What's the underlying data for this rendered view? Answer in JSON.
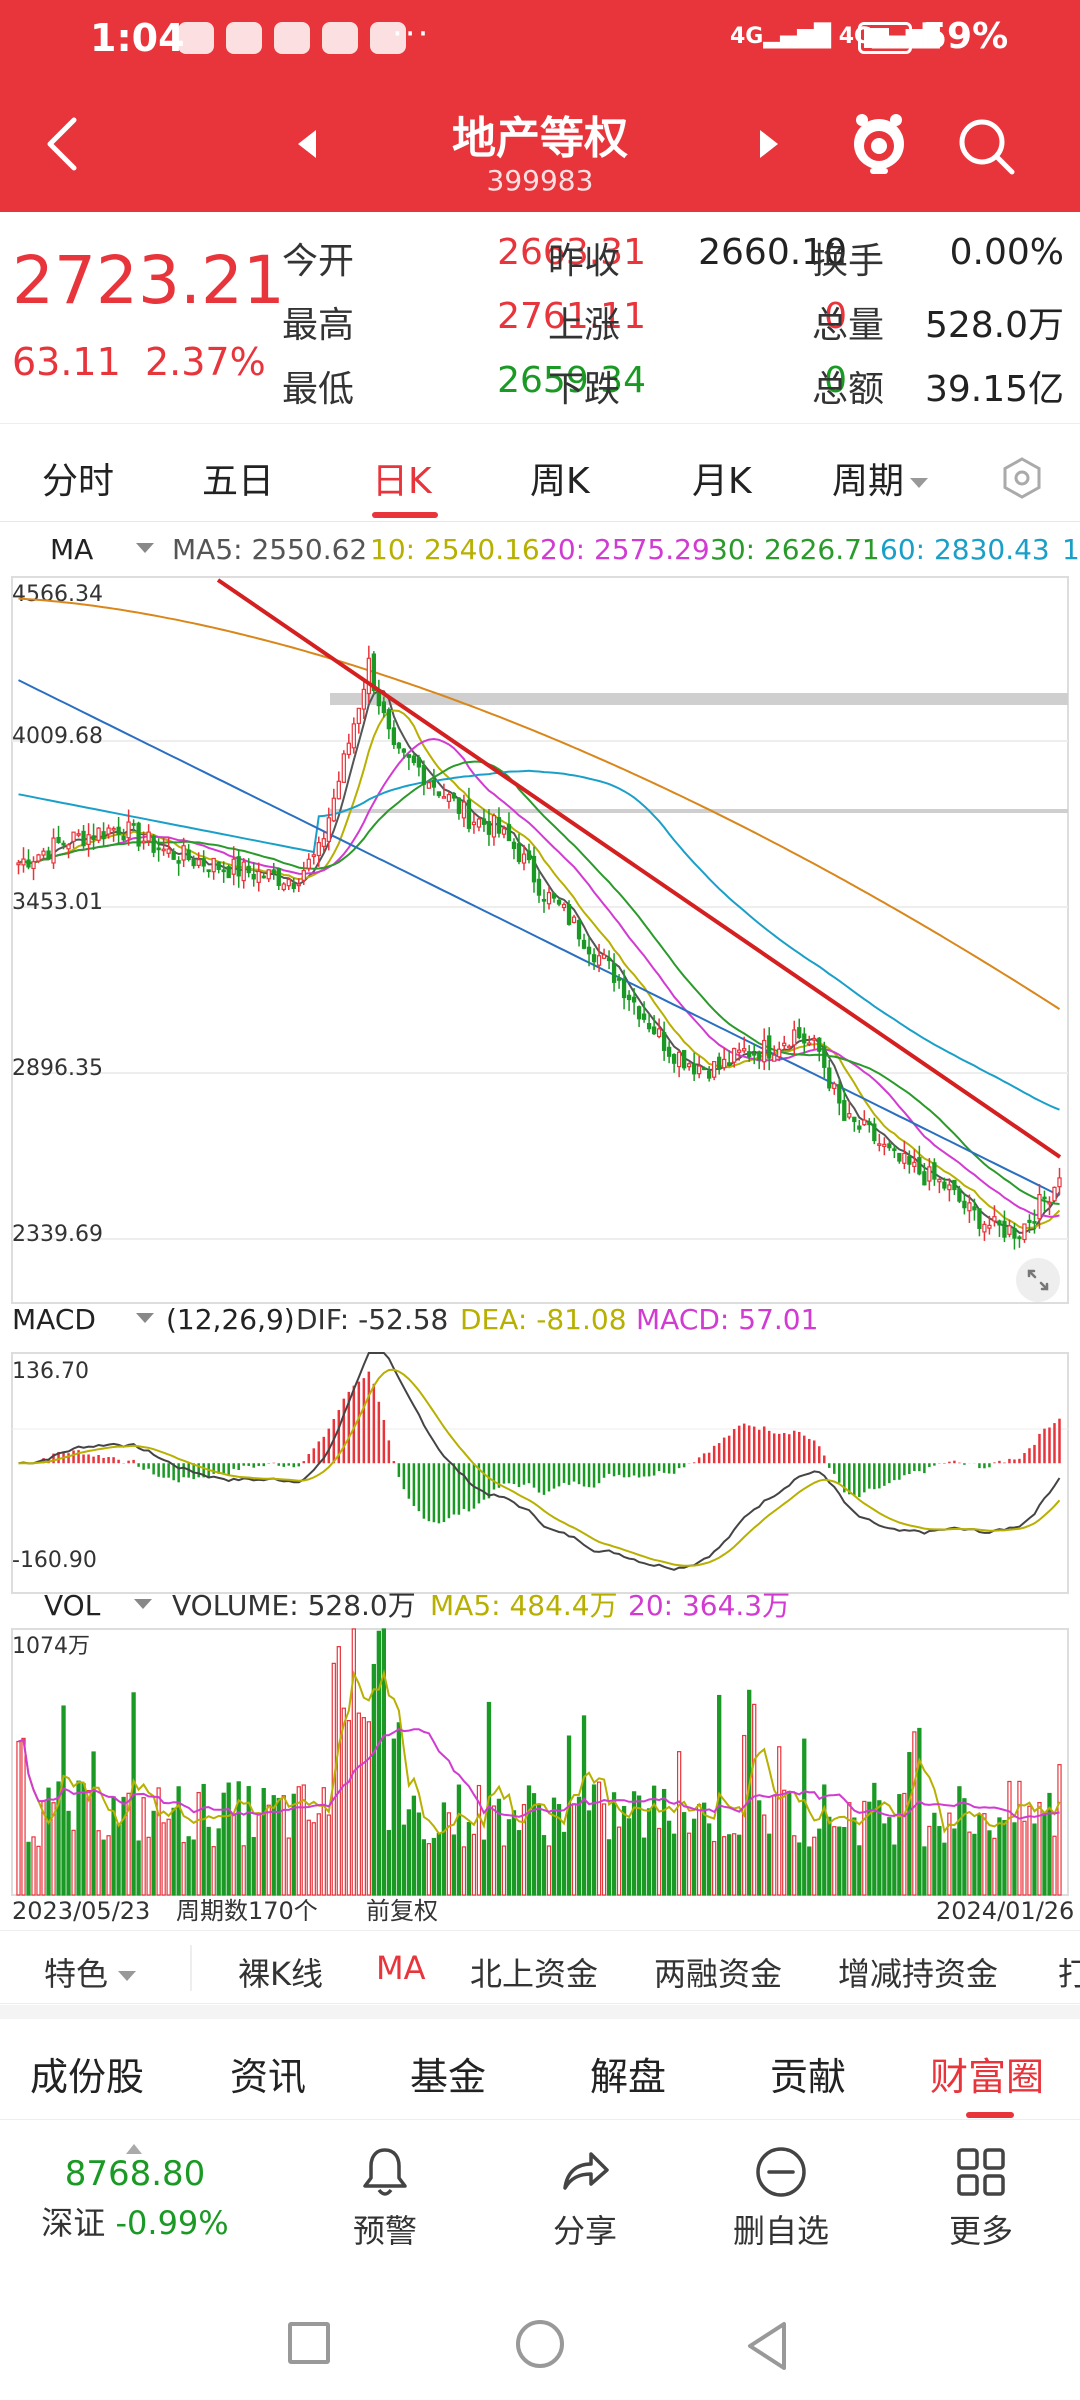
{
  "status": {
    "time": "1:04",
    "battery": "59%",
    "signal": "4G",
    "battery_level": 0.59
  },
  "header": {
    "title": "地产等权",
    "code": "399983"
  },
  "quote": {
    "price": "2723.21",
    "change": "63.11",
    "change_pct": "2.37%",
    "rows": [
      {
        "l1": "今开",
        "v1": "2663.31",
        "l2": "昨收",
        "v2": "2660.10",
        "l3": "换手",
        "v3": "0.00%"
      },
      {
        "l1": "最高",
        "v1": "2761.11",
        "l2": "上涨",
        "v2": "0",
        "l3": "总量",
        "v3": "528.0万"
      },
      {
        "l1": "最低",
        "v1": "2659.34",
        "l2": "下跌",
        "v2": "0",
        "l3": "总额",
        "v3": "39.15亿"
      }
    ]
  },
  "period_tabs": [
    "分时",
    "五日",
    "日K",
    "周K",
    "月K",
    "周期"
  ],
  "active_period": "日K",
  "ma_legend": {
    "name": "MA",
    "ma5": "MA5: 2550.62",
    "ma10": "10: 2540.16",
    "ma20": "20: 2575.29",
    "ma30": "30: 2626.71",
    "ma60": "60: 2830.43",
    "badge": "1"
  },
  "macd_legend": {
    "name": "MACD",
    "params": "(12,26,9)",
    "dif": "DIF: -52.58",
    "dea": "DEA: -81.08",
    "macd": "MACD: 57.01"
  },
  "vol_legend": {
    "name": "VOL",
    "volume": "VOLUME: 528.0万",
    "ma5": "MA5: 484.4万",
    "ma20": "20: 364.3万"
  },
  "axis": {
    "price_ticks": [
      "4566.34",
      "4009.68",
      "3453.01",
      "2896.35",
      "2339.69"
    ],
    "macd_ticks": [
      "136.70",
      "-160.90"
    ],
    "vol_tick": "1074万",
    "start_date": "2023/05/23",
    "end_date": "2024/01/26",
    "period_count": "周期数170个",
    "adjust": "前复权"
  },
  "colors": {
    "red": "#e8343b",
    "green": "#1a9a24",
    "ma5": "#555555",
    "ma10": "#b8b000",
    "ma20": "#d23bd2",
    "ma30": "#2a9a2a",
    "ma60": "#1aa0c8",
    "ma120": "#2a6fc0",
    "ma250": "#d9861a"
  },
  "indicator_bar": [
    "特色",
    "裸K线",
    "MA",
    "北上资金",
    "两融资金",
    "增减持资金",
    "打"
  ],
  "active_indicator": "MA",
  "bottom_tabs": [
    "成份股",
    "资讯",
    "基金",
    "解盘",
    "贡献",
    "财富圈"
  ],
  "active_bottom_tab": "财富圈",
  "index": {
    "value": "8768.80",
    "name": "深证",
    "change": "-0.99%"
  },
  "actions": [
    {
      "label": "预警",
      "icon": "bell-icon"
    },
    {
      "label": "分享",
      "icon": "share-icon"
    },
    {
      "label": "删自选",
      "icon": "remove-icon"
    },
    {
      "label": "更多",
      "icon": "grid-icon"
    }
  ],
  "chart_data": {
    "type": "candlestick",
    "title": "地产等权 日K",
    "x_range": [
      "2023/05/23",
      "2024/01/26"
    ],
    "periods": 170,
    "ylim": [
      2339.69,
      4566.34
    ],
    "close_series_approx": [
      [
        0,
        3690
      ],
      [
        10,
        3760
      ],
      [
        20,
        3800
      ],
      [
        30,
        3720
      ],
      [
        40,
        3680
      ],
      [
        50,
        3650
      ],
      [
        55,
        3640
      ],
      [
        60,
        3720
      ],
      [
        65,
        4000
      ],
      [
        70,
        4300
      ],
      [
        75,
        4020
      ],
      [
        80,
        3980
      ],
      [
        85,
        3900
      ],
      [
        90,
        3830
      ],
      [
        95,
        3800
      ],
      [
        100,
        3720
      ],
      [
        105,
        3600
      ],
      [
        110,
        3520
      ],
      [
        115,
        3420
      ],
      [
        120,
        3330
      ],
      [
        125,
        3220
      ],
      [
        130,
        3120
      ],
      [
        135,
        3070
      ],
      [
        140,
        3060
      ],
      [
        145,
        3110
      ],
      [
        150,
        3120
      ],
      [
        155,
        3170
      ],
      [
        160,
        3110
      ],
      [
        165,
        2900
      ],
      [
        170,
        2860
      ],
      [
        175,
        2780
      ],
      [
        180,
        2740
      ],
      [
        185,
        2700
      ],
      [
        190,
        2620
      ],
      [
        195,
        2570
      ],
      [
        200,
        2560
      ],
      [
        205,
        2660
      ],
      [
        208,
        2723
      ]
    ],
    "macd": {
      "dif": -52.58,
      "dea": -81.08,
      "macd": 57.01,
      "ylim": [
        -160.9,
        136.7
      ]
    },
    "volume": {
      "last": "528.0万",
      "ma5": "484.4万",
      "ma20": "364.3万",
      "ymax": "1074万"
    }
  }
}
